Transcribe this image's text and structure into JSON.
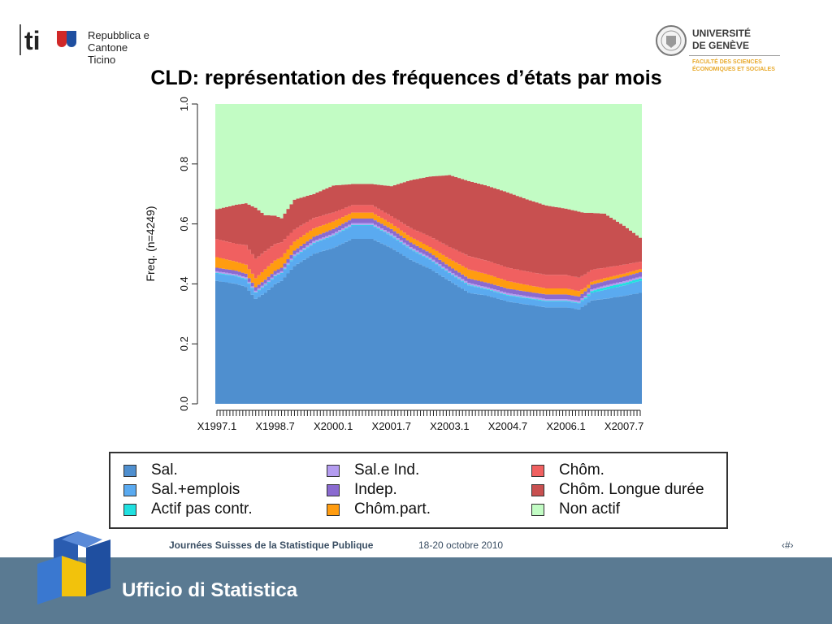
{
  "header": {
    "left_logo_line1": "Repubblica e Cantone",
    "left_logo_line2": "Ticino",
    "right_logo_line1": "UNIVERSITÉ",
    "right_logo_line2": "DE GENÈVE",
    "right_logo_sub1": "FACULTÉ DES SCIENCES",
    "right_logo_sub2": "ÉCONOMIQUES ET SOCIALES"
  },
  "slide_title": "CLD: représentation des fréquences d’états par mois",
  "chart_data": {
    "type": "area",
    "stacked": true,
    "title": "",
    "ylabel": "Freq. (n=4249)",
    "xlabel": "",
    "ylim": [
      0,
      1
    ],
    "yticks": [
      "0.0",
      "0.2",
      "0.4",
      "0.6",
      "0.8",
      "1.0"
    ],
    "x_tick_labels": [
      "X1997.1",
      "X1998.7",
      "X2000.1",
      "X2001.7",
      "X2003.1",
      "X2004.7",
      "X2006.1",
      "X2007.7"
    ],
    "x_label_index": [
      0,
      18,
      36,
      54,
      72,
      90,
      108,
      126
    ],
    "n_months": 132,
    "anchor_months": [
      0,
      6,
      9,
      12,
      15,
      18,
      20,
      24,
      30,
      36,
      42,
      48,
      54,
      60,
      66,
      72,
      78,
      84,
      90,
      96,
      102,
      108,
      112,
      114,
      116,
      120,
      126,
      131
    ],
    "series": [
      {
        "name": "Sal.",
        "color": "#4f8fcf",
        "values": [
          0.41,
          0.4,
          0.39,
          0.35,
          0.37,
          0.4,
          0.41,
          0.46,
          0.5,
          0.52,
          0.55,
          0.55,
          0.52,
          0.48,
          0.45,
          0.41,
          0.37,
          0.36,
          0.34,
          0.33,
          0.32,
          0.32,
          0.315,
          0.33,
          0.345,
          0.35,
          0.36,
          0.37
        ]
      },
      {
        "name": "Sal.+emplois",
        "color": "#5aaaf0",
        "values": [
          0.025,
          0.025,
          0.025,
          0.02,
          0.025,
          0.025,
          0.025,
          0.03,
          0.035,
          0.04,
          0.045,
          0.045,
          0.04,
          0.035,
          0.03,
          0.025,
          0.025,
          0.02,
          0.02,
          0.02,
          0.02,
          0.02,
          0.02,
          0.02,
          0.025,
          0.03,
          0.035,
          0.04
        ]
      },
      {
        "name": "Actif pas contr.",
        "color": "#20e0e0",
        "values": [
          0.002,
          0.002,
          0.002,
          0.002,
          0.002,
          0.002,
          0.002,
          0.002,
          0.002,
          0.002,
          0.002,
          0.002,
          0.002,
          0.002,
          0.002,
          0.002,
          0.002,
          0.002,
          0.002,
          0.002,
          0.002,
          0.002,
          0.002,
          0.004,
          0.006,
          0.008,
          0.008,
          0.008
        ]
      },
      {
        "name": "Sal.e Ind.",
        "color": "#b49cf0",
        "values": [
          0.005,
          0.005,
          0.005,
          0.005,
          0.005,
          0.005,
          0.005,
          0.006,
          0.006,
          0.006,
          0.006,
          0.006,
          0.006,
          0.006,
          0.006,
          0.006,
          0.006,
          0.006,
          0.006,
          0.006,
          0.006,
          0.006,
          0.006,
          0.006,
          0.006,
          0.006,
          0.006,
          0.006
        ]
      },
      {
        "name": "Indep.",
        "color": "#8a6ad0",
        "values": [
          0.012,
          0.012,
          0.012,
          0.012,
          0.012,
          0.012,
          0.012,
          0.013,
          0.014,
          0.015,
          0.015,
          0.015,
          0.015,
          0.015,
          0.015,
          0.015,
          0.015,
          0.015,
          0.015,
          0.015,
          0.015,
          0.015,
          0.015,
          0.015,
          0.015,
          0.015,
          0.015,
          0.015
        ]
      },
      {
        "name": "Chôm.part.",
        "color": "#ff9c10",
        "values": [
          0.035,
          0.03,
          0.03,
          0.03,
          0.035,
          0.035,
          0.035,
          0.03,
          0.028,
          0.025,
          0.02,
          0.02,
          0.018,
          0.018,
          0.02,
          0.025,
          0.03,
          0.028,
          0.025,
          0.022,
          0.02,
          0.02,
          0.018,
          0.012,
          0.01,
          0.01,
          0.01,
          0.01
        ]
      },
      {
        "name": "Chôm.",
        "color": "#f06060",
        "values": [
          0.06,
          0.06,
          0.065,
          0.065,
          0.06,
          0.055,
          0.05,
          0.04,
          0.035,
          0.03,
          0.025,
          0.025,
          0.025,
          0.03,
          0.035,
          0.04,
          0.045,
          0.045,
          0.045,
          0.045,
          0.045,
          0.045,
          0.045,
          0.045,
          0.04,
          0.035,
          0.03,
          0.025
        ]
      },
      {
        "name": "Chôm. Longue durée",
        "color": "#c85050",
        "values": [
          0.1,
          0.13,
          0.14,
          0.17,
          0.12,
          0.095,
          0.08,
          0.1,
          0.08,
          0.09,
          0.07,
          0.07,
          0.1,
          0.16,
          0.2,
          0.24,
          0.25,
          0.25,
          0.25,
          0.24,
          0.23,
          0.22,
          0.22,
          0.205,
          0.19,
          0.18,
          0.13,
          0.08
        ]
      },
      {
        "name": "Non actif",
        "color": "#c2fcc4",
        "values": [
          0.351,
          0.336,
          0.331,
          0.346,
          0.371,
          0.373,
          0.381,
          0.319,
          0.3,
          0.272,
          0.267,
          0.267,
          0.274,
          0.254,
          0.242,
          0.237,
          0.257,
          0.274,
          0.294,
          0.317,
          0.337,
          0.347,
          0.359,
          0.363,
          0.363,
          0.366,
          0.406,
          0.446
        ]
      }
    ]
  },
  "legend": {
    "items": [
      {
        "label": "Sal.",
        "color": "#4f8fcf"
      },
      {
        "label": "Sal.+emplois",
        "color": "#5aaaf0"
      },
      {
        "label": "Actif pas contr.",
        "color": "#20e0e0"
      },
      {
        "label": "Sal.e Ind.",
        "color": "#b49cf0"
      },
      {
        "label": "Indep.",
        "color": "#8a6ad0"
      },
      {
        "label": "Chôm.part.",
        "color": "#ff9c10"
      },
      {
        "label": "Chôm.",
        "color": "#f06060"
      },
      {
        "label": "Chôm. Longue durée",
        "color": "#c85050"
      },
      {
        "label": "Non actif",
        "color": "#c2fcc4"
      }
    ]
  },
  "footer": {
    "event": "Journées Suisses de la Statistique Publique",
    "dates": "18-20 octobre 2010",
    "page_marker": "‹#›",
    "organization": "Ufficio di Statistica"
  }
}
